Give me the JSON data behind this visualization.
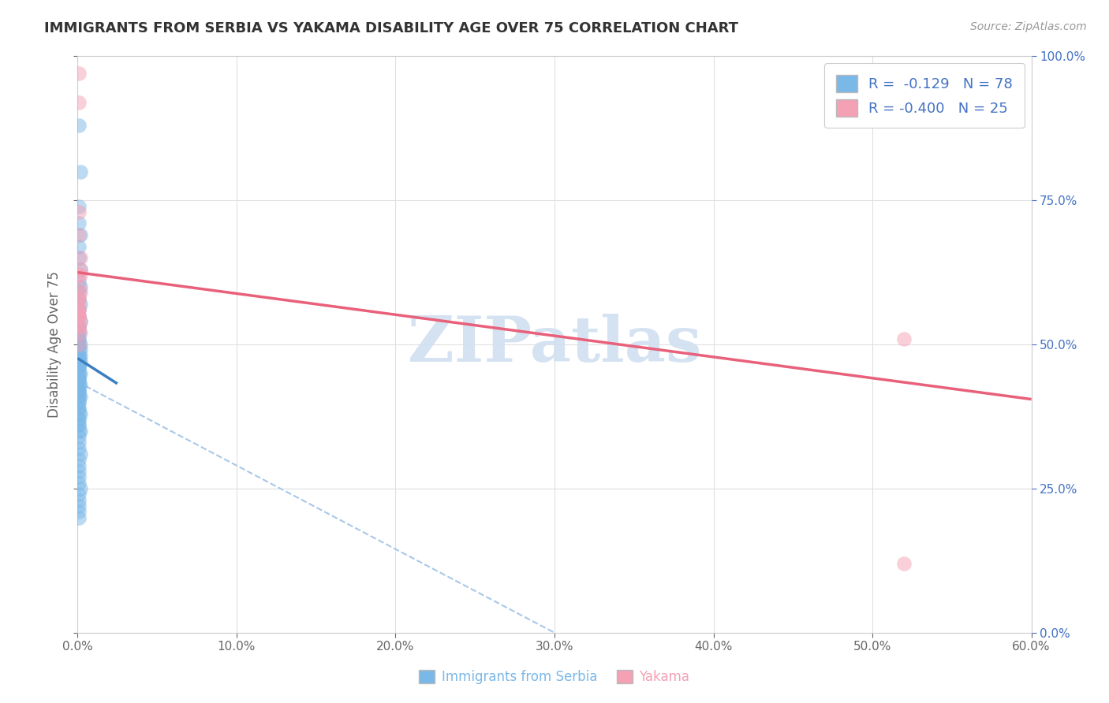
{
  "title": "IMMIGRANTS FROM SERBIA VS YAKAMA DISABILITY AGE OVER 75 CORRELATION CHART",
  "source": "Source: ZipAtlas.com",
  "ylabel": "Disability Age Over 75",
  "xlim": [
    0.0,
    0.6
  ],
  "ylim": [
    0.0,
    1.0
  ],
  "xticks": [
    0.0,
    0.1,
    0.2,
    0.3,
    0.4,
    0.5,
    0.6
  ],
  "xticklabels": [
    "0.0%",
    "10.0%",
    "20.0%",
    "30.0%",
    "40.0%",
    "50.0%",
    "60.0%"
  ],
  "yticks": [
    0.0,
    0.25,
    0.5,
    0.75,
    1.0
  ],
  "yticklabels": [
    "0.0%",
    "25.0%",
    "50.0%",
    "75.0%",
    "100.0%"
  ],
  "blue_color": "#7ab8e8",
  "pink_color": "#f4a0b5",
  "blue_line_color": "#3a7fc1",
  "pink_line_color": "#e8607a",
  "dashed_line_color": "#a8c8e8",
  "watermark_color": "#d0dff0",
  "title_color": "#333333",
  "axis_color": "#666666",
  "grid_color": "#e0e0e0",
  "right_ytick_color": "#4472c4",
  "legend_label_color": "#4472c4",
  "blue_scatter_x": [
    0.001,
    0.002,
    0.001,
    0.001,
    0.002,
    0.001,
    0.001,
    0.002,
    0.001,
    0.002,
    0.001,
    0.001,
    0.002,
    0.001,
    0.001,
    0.002,
    0.001,
    0.001,
    0.001,
    0.001,
    0.001,
    0.001,
    0.002,
    0.001,
    0.001,
    0.002,
    0.001,
    0.002,
    0.001,
    0.001,
    0.001,
    0.001,
    0.002,
    0.001,
    0.001,
    0.001,
    0.001,
    0.001,
    0.002,
    0.001,
    0.001,
    0.001,
    0.001,
    0.002,
    0.001,
    0.001,
    0.001,
    0.001,
    0.001,
    0.001,
    0.002,
    0.001,
    0.001,
    0.001,
    0.001,
    0.002,
    0.001,
    0.001,
    0.001,
    0.001,
    0.001,
    0.001,
    0.002,
    0.001,
    0.001,
    0.001,
    0.002,
    0.001,
    0.001,
    0.001,
    0.001,
    0.001,
    0.002,
    0.001,
    0.001,
    0.001,
    0.001,
    0.001
  ],
  "blue_scatter_y": [
    0.88,
    0.8,
    0.74,
    0.71,
    0.69,
    0.67,
    0.65,
    0.63,
    0.61,
    0.6,
    0.59,
    0.58,
    0.57,
    0.56,
    0.55,
    0.54,
    0.53,
    0.53,
    0.52,
    0.52,
    0.51,
    0.51,
    0.5,
    0.5,
    0.5,
    0.49,
    0.49,
    0.48,
    0.48,
    0.48,
    0.47,
    0.47,
    0.47,
    0.46,
    0.46,
    0.46,
    0.45,
    0.45,
    0.45,
    0.44,
    0.44,
    0.44,
    0.43,
    0.43,
    0.43,
    0.42,
    0.42,
    0.42,
    0.41,
    0.41,
    0.41,
    0.4,
    0.4,
    0.39,
    0.39,
    0.38,
    0.38,
    0.37,
    0.37,
    0.36,
    0.36,
    0.35,
    0.35,
    0.34,
    0.33,
    0.32,
    0.31,
    0.3,
    0.29,
    0.28,
    0.27,
    0.26,
    0.25,
    0.24,
    0.23,
    0.22,
    0.21,
    0.2
  ],
  "pink_scatter_x": [
    0.001,
    0.001,
    0.001,
    0.001,
    0.002,
    0.001,
    0.002,
    0.001,
    0.001,
    0.001,
    0.001,
    0.001,
    0.002,
    0.001,
    0.002,
    0.001,
    0.001,
    0.002,
    0.001,
    0.001,
    0.002,
    0.001,
    0.001,
    0.52,
    0.52
  ],
  "pink_scatter_y": [
    0.97,
    0.92,
    0.73,
    0.69,
    0.65,
    0.62,
    0.62,
    0.58,
    0.56,
    0.55,
    0.57,
    0.55,
    0.54,
    0.53,
    0.59,
    0.56,
    0.53,
    0.52,
    0.58,
    0.55,
    0.63,
    0.5,
    0.6,
    0.51,
    0.12
  ],
  "blue_trend_x": [
    0.0,
    0.025
  ],
  "blue_trend_y": [
    0.476,
    0.432
  ],
  "pink_trend_x": [
    0.0,
    0.6
  ],
  "pink_trend_y": [
    0.625,
    0.405
  ],
  "dashed_trend_x": [
    0.0,
    0.3
  ],
  "dashed_trend_y": [
    0.435,
    0.0
  ]
}
